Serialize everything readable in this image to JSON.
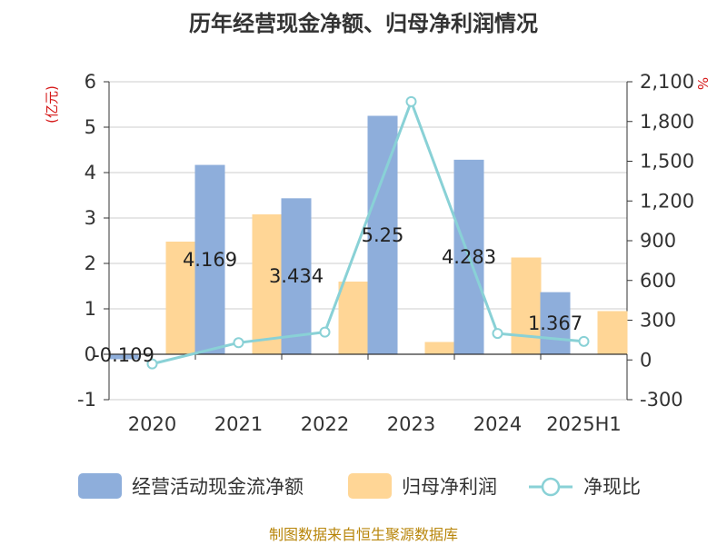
{
  "title": "历年经营现金净额、归母净利润情况",
  "source": "制图数据来自恒生聚源数据库",
  "chart_data": {
    "type": "bar",
    "categories": [
      "2020",
      "2021",
      "2022",
      "2023",
      "2024",
      "2025H1"
    ],
    "left_axis": {
      "unit": "(亿元)",
      "ylim": [
        -1,
        6
      ],
      "ticks": [
        "6",
        "5",
        "4",
        "3",
        "2",
        "1",
        "0",
        "-1"
      ],
      "tick_values": [
        6,
        5,
        4,
        3,
        2,
        1,
        0,
        -1
      ]
    },
    "right_axis": {
      "unit": "%",
      "ylim": [
        -300,
        2100
      ],
      "ticks": [
        "2,100",
        "1,800",
        "1,500",
        "1,200",
        "900",
        "600",
        "300",
        "0",
        "-300"
      ],
      "tick_values": [
        2100,
        1800,
        1500,
        1200,
        900,
        600,
        300,
        0,
        -300
      ]
    },
    "series": [
      {
        "name": "经营活动现金流净额",
        "type": "bar",
        "axis": "left",
        "color": "#8eaedb",
        "values": [
          -0.109,
          4.169,
          3.434,
          5.25,
          4.283,
          1.367
        ],
        "labels": [
          "-0.109",
          "4.169",
          "3.434",
          "5.25",
          "4.283",
          "1.367"
        ]
      },
      {
        "name": "归母净利润",
        "type": "bar",
        "axis": "left",
        "color": "#ffd696",
        "values": [
          2.48,
          3.08,
          1.6,
          0.27,
          2.13,
          0.95
        ]
      },
      {
        "name": "净现比",
        "type": "line",
        "axis": "right",
        "color": "#89d1d6",
        "values": [
          -30,
          130,
          210,
          1950,
          200,
          140
        ]
      }
    ],
    "grid": true,
    "legend_position": "bottom"
  }
}
